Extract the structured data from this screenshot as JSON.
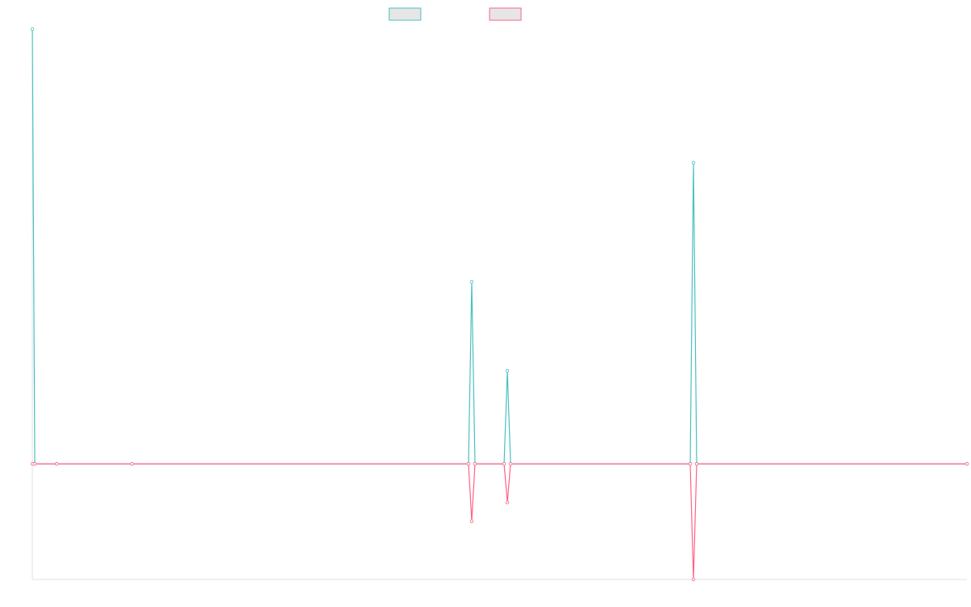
{
  "chart_data": {
    "type": "line",
    "x": [
      0,
      3,
      30,
      123,
      539,
      543,
      547,
      583,
      587,
      591,
      813,
      817,
      821,
      1155
    ],
    "xlim": [
      0,
      1155
    ],
    "ylim": [
      -26.6,
      100
    ],
    "series": [
      {
        "color": "#4bc0c0",
        "values": [
          100,
          0,
          0,
          0,
          0,
          41.9,
          0,
          0,
          21.4,
          0,
          0,
          69.3,
          0,
          0
        ]
      },
      {
        "color": "#ff6384",
        "values": [
          0,
          0,
          0,
          0,
          0,
          -13.2,
          0,
          0,
          -8.9,
          0,
          0,
          -26.6,
          0,
          0
        ]
      }
    ]
  }
}
